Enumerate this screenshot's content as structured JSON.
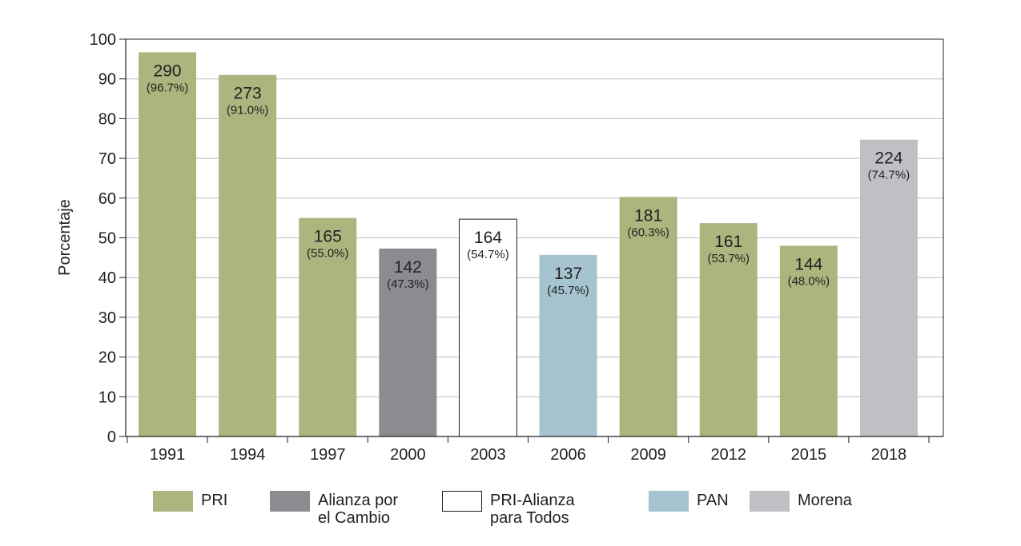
{
  "chart_data": {
    "type": "bar",
    "title": "",
    "xlabel": "",
    "ylabel": "Porcentaje",
    "ylim": [
      0,
      100
    ],
    "yticks": [
      0,
      10,
      20,
      30,
      40,
      50,
      60,
      70,
      80,
      90,
      100
    ],
    "grid": true,
    "categories": [
      "1991",
      "1994",
      "1997",
      "2000",
      "2003",
      "2006",
      "2009",
      "2012",
      "2015",
      "2018"
    ],
    "bars": [
      {
        "year": "1991",
        "value": 96.7,
        "count": "290",
        "pct_label": "(96.7%)",
        "party": "PRI"
      },
      {
        "year": "1994",
        "value": 91.0,
        "count": "273",
        "pct_label": "(91.0%)",
        "party": "PRI"
      },
      {
        "year": "1997",
        "value": 55.0,
        "count": "165",
        "pct_label": "(55.0%)",
        "party": "PRI"
      },
      {
        "year": "2000",
        "value": 47.3,
        "count": "142",
        "pct_label": "(47.3%)",
        "party": "Alianza por el Cambio"
      },
      {
        "year": "2003",
        "value": 54.7,
        "count": "164",
        "pct_label": "(54.7%)",
        "party": "PRI-Alianza para Todos"
      },
      {
        "year": "2006",
        "value": 45.7,
        "count": "137",
        "pct_label": "(45.7%)",
        "party": "PAN"
      },
      {
        "year": "2009",
        "value": 60.3,
        "count": "181",
        "pct_label": "(60.3%)",
        "party": "PRI"
      },
      {
        "year": "2012",
        "value": 53.7,
        "count": "161",
        "pct_label": "(53.7%)",
        "party": "PRI"
      },
      {
        "year": "2015",
        "value": 48.0,
        "count": "144",
        "pct_label": "(48.0%)",
        "party": "PRI"
      },
      {
        "year": "2018",
        "value": 74.7,
        "count": "224",
        "pct_label": "(74.7%)",
        "party": "Morena"
      }
    ],
    "legend": [
      {
        "party": "PRI",
        "lines": [
          "PRI"
        ],
        "color": "#abb57d",
        "border": "#abb57d"
      },
      {
        "party": "Alianza por el Cambio",
        "lines": [
          "Alianza por",
          "el Cambio"
        ],
        "color": "#8b8c90",
        "border": "#8b8c90"
      },
      {
        "party": "PRI-Alianza para Todos",
        "lines": [
          "PRI-Alianza",
          "para Todos"
        ],
        "color": "#ffffff",
        "border": "#231f20"
      },
      {
        "party": "PAN",
        "lines": [
          "PAN"
        ],
        "color": "#a5c4d0",
        "border": "#a5c4d0"
      },
      {
        "party": "Morena",
        "lines": [
          "Morena"
        ],
        "color": "#bfc0c4",
        "border": "#bfc0c4"
      }
    ]
  },
  "colors": {
    "axis": "#231f20",
    "grid": "#bcbec0"
  }
}
